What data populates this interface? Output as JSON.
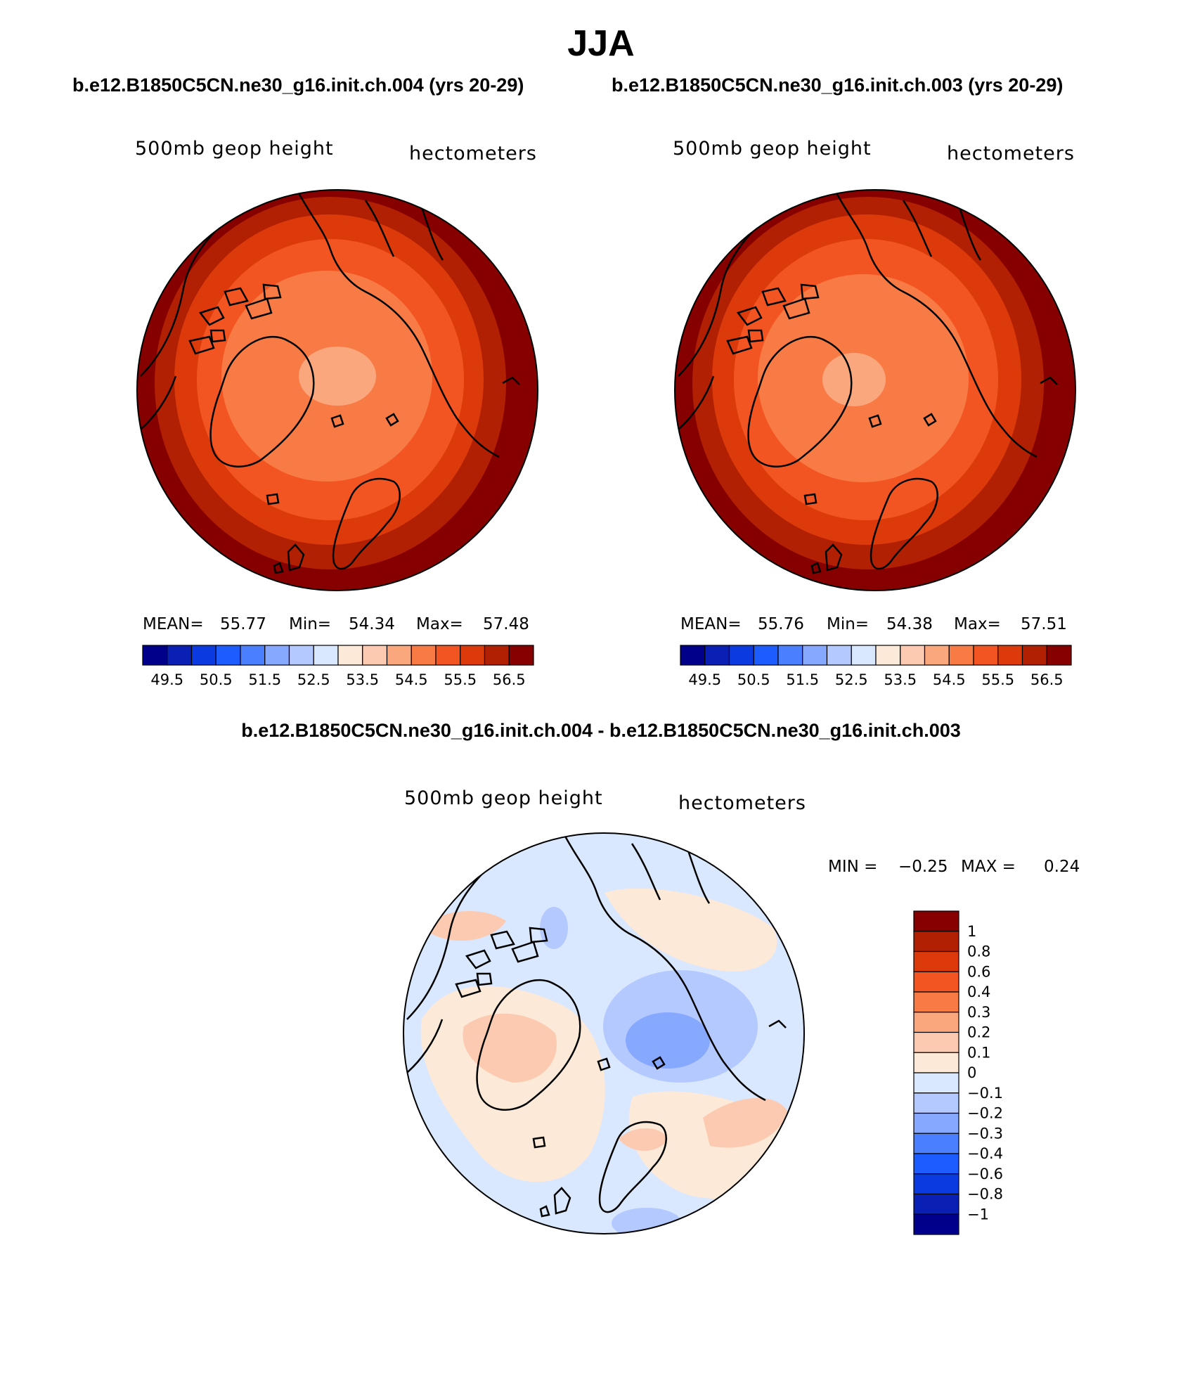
{
  "figure": {
    "season": "JJA",
    "case1_title": "b.e12.B1850C5CN.ne30_g16.init.ch.004 (yrs 20-29)",
    "case2_title": "b.e12.B1850C5CN.ne30_g16.init.ch.003 (yrs 20-29)",
    "diff_title": "b.e12.B1850C5CN.ne30_g16.init.ch.004 - b.e12.B1850C5CN.ne30_g16.init.ch.003"
  },
  "panels": {
    "left": {
      "variable": "500mb geop height",
      "units": "hectometers",
      "mean_label": "MEAN=",
      "mean": "55.77",
      "min_label": "Min=",
      "min": "54.34",
      "max_label": "Max=",
      "max": "57.48"
    },
    "right": {
      "variable": "500mb geop height",
      "units": "hectometers",
      "mean_label": "MEAN=",
      "mean": "55.76",
      "min_label": "Min=",
      "min": "54.38",
      "max_label": "Max=",
      "max": "57.51"
    },
    "diff": {
      "variable": "500mb geop height",
      "units": "hectometers",
      "min_label": "MIN =",
      "min": "−0.25",
      "max_label": "MAX =",
      "max": "0.24"
    }
  },
  "colorbar_abs": {
    "colors": [
      "#00008b",
      "#0a1fb4",
      "#0b3be0",
      "#1d5cff",
      "#4a80ff",
      "#86a8ff",
      "#b4c9ff",
      "#d9e8ff",
      "#fde9d8",
      "#fccab0",
      "#fba77e",
      "#f87b45",
      "#f35522",
      "#dc3a0a",
      "#b22004",
      "#870000"
    ],
    "tick_labels": [
      "49.5",
      "50.5",
      "51.5",
      "52.5",
      "53.5",
      "54.5",
      "55.5",
      "56.5"
    ]
  },
  "colorbar_diff": {
    "colors": [
      "#870000",
      "#b22004",
      "#dc3a0a",
      "#f35522",
      "#f87b45",
      "#fba77e",
      "#fccab0",
      "#fde9d8",
      "#d9e8ff",
      "#b4c9ff",
      "#86a8ff",
      "#4a80ff",
      "#1d5cff",
      "#0b3be0",
      "#0a1fb4",
      "#00008b"
    ],
    "tick_labels": [
      "1",
      "0.8",
      "0.6",
      "0.4",
      "0.3",
      "0.2",
      "0.1",
      "0",
      "−0.1",
      "−0.2",
      "−0.3",
      "−0.4",
      "−0.6",
      "−0.8",
      "−1"
    ]
  }
}
